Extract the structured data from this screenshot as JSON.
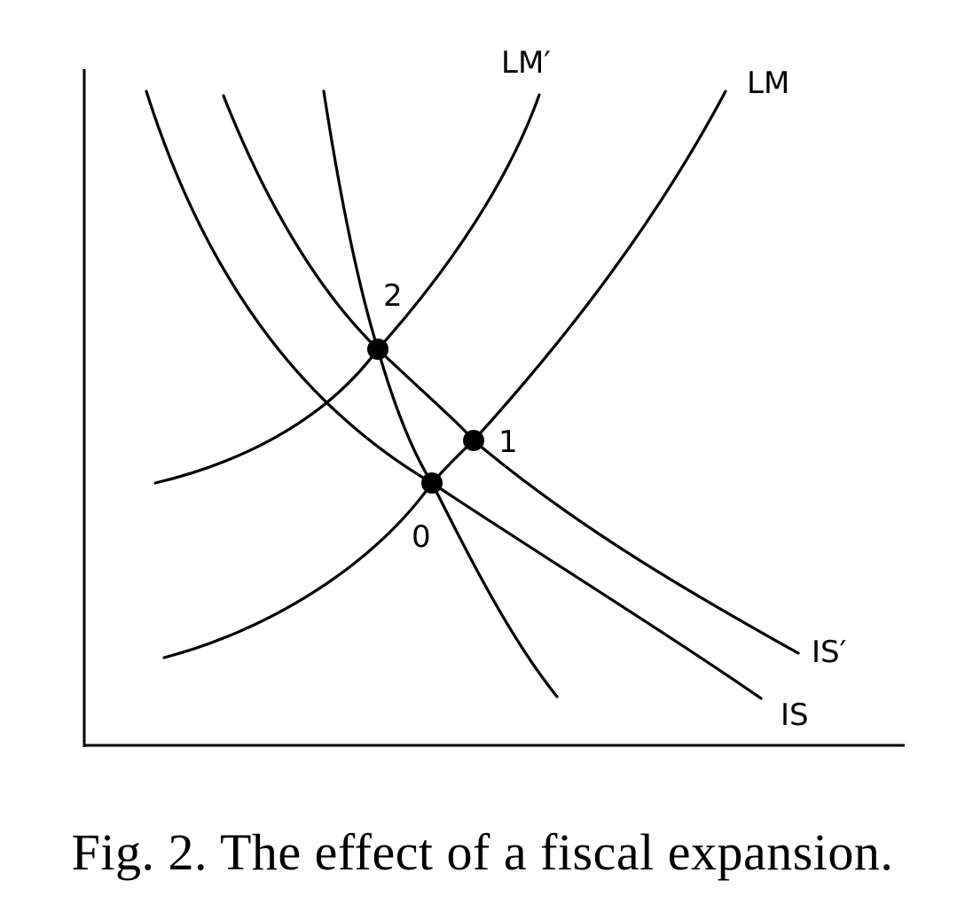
{
  "diagram": {
    "curve_labels": {
      "lm_prime": "LM′",
      "lm": "LM",
      "is_prime": "IS′",
      "is": "IS"
    },
    "points": [
      {
        "label": "0"
      },
      {
        "label": "1"
      },
      {
        "label": "2"
      }
    ]
  },
  "caption": "Fig. 2. The effect of a fiscal expansion."
}
